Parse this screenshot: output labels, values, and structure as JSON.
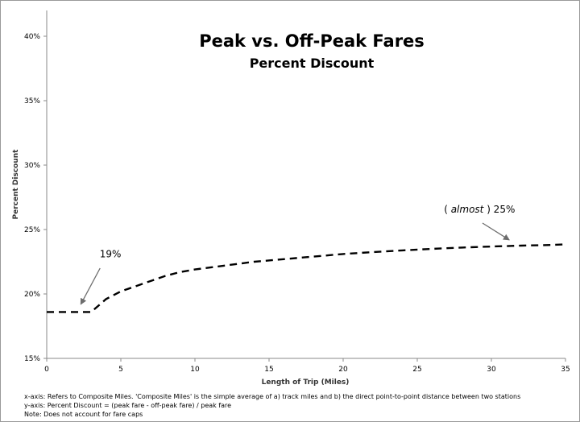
{
  "chart_data": {
    "type": "line",
    "title": "Peak vs. Off-Peak Fares",
    "subtitle": "Percent Discount",
    "xlabel": "Length of Trip (Miles)",
    "ylabel": "Percent Discount",
    "xlim": [
      0,
      35
    ],
    "ylim": [
      15,
      42
    ],
    "x_ticks": [
      0,
      5,
      10,
      15,
      20,
      25,
      30,
      35
    ],
    "y_ticks": [
      15,
      20,
      25,
      30,
      35,
      40
    ],
    "y_tick_labels": [
      "15%",
      "20%",
      "25%",
      "30%",
      "35%",
      "40%"
    ],
    "grid": false,
    "series": [
      {
        "line_style": "dashed",
        "color": "#000000",
        "x": [
          0,
          1,
          2,
          3,
          4,
          5,
          6,
          7,
          8,
          9,
          10,
          12,
          14,
          16,
          18,
          20,
          22,
          24,
          26,
          28,
          30,
          32,
          34,
          35
        ],
        "y": [
          18.6,
          18.6,
          18.6,
          18.6,
          19.6,
          20.2,
          20.6,
          21.0,
          21.4,
          21.7,
          21.9,
          22.2,
          22.5,
          22.7,
          22.9,
          23.1,
          23.25,
          23.38,
          23.5,
          23.6,
          23.68,
          23.75,
          23.8,
          23.85
        ]
      }
    ],
    "annotations": [
      {
        "text": "19%",
        "label_x": 4.3,
        "label_y": 22.85,
        "arrow_from": [
          3.6,
          22.0
        ],
        "arrow_to": [
          2.3,
          19.2
        ]
      },
      {
        "text_open": "(",
        "text_italic": "almost",
        "text_close": ") 25%",
        "label_x": 29.2,
        "label_y": 26.3,
        "arrow_from": [
          29.4,
          25.5
        ],
        "arrow_to": [
          31.2,
          24.2
        ]
      }
    ]
  },
  "notes": [
    "x-axis: Refers to Composite Miles. 'Composite Miles' is the simple average of a) track miles and b) the direct point-to-point distance between two stations",
    "y-axis: Percent Discount = (peak fare - off-peak fare) / peak fare",
    "Note:   Does not account for fare caps"
  ]
}
